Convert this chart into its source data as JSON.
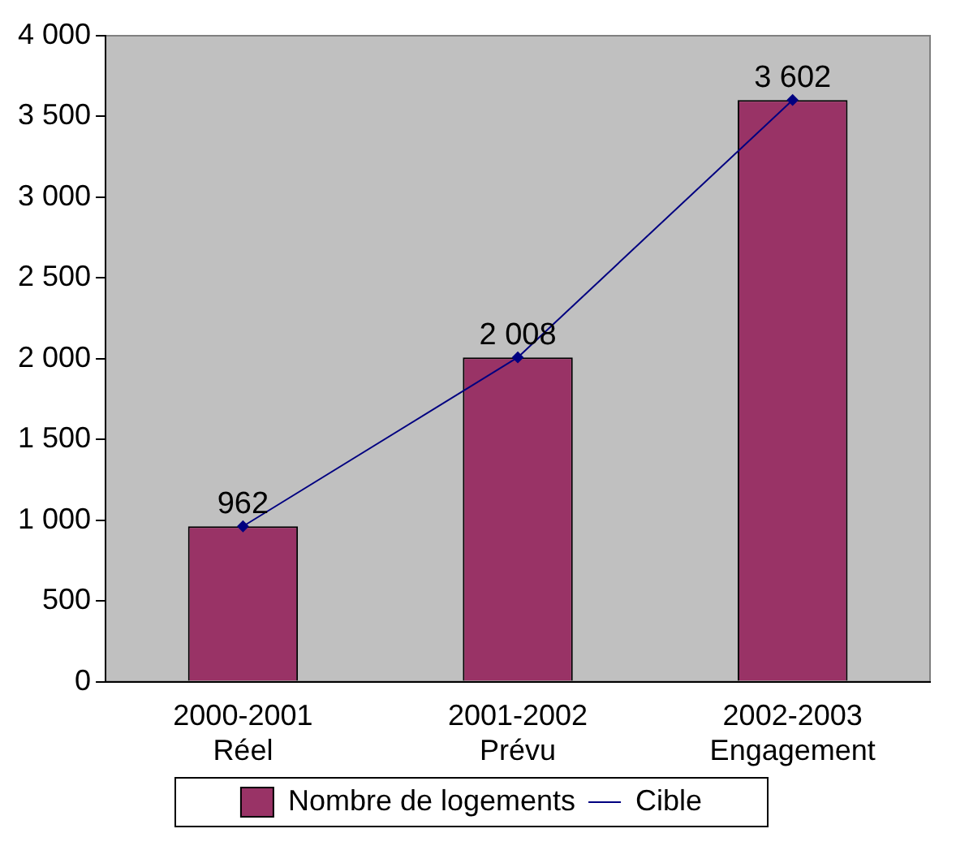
{
  "chart_data": {
    "type": "bar",
    "categories": [
      "2000-2001\nRéel",
      "2001-2002\nPrévu",
      "2002-2003\nEngagement"
    ],
    "series": [
      {
        "name": "Nombre de logements",
        "color": "#993366",
        "values": [
          962,
          2008,
          3602
        ],
        "value_labels": [
          "962",
          "2 008",
          "3 602"
        ]
      },
      {
        "name": "Cible",
        "type": "line",
        "color": "#000080",
        "values": [
          962,
          2008,
          3602
        ],
        "marker": "diamond",
        "line_style": "solid"
      }
    ],
    "ylim": [
      0,
      4000
    ],
    "yticks": [
      {
        "value": 0,
        "label": "0"
      },
      {
        "value": 500,
        "label": "500"
      },
      {
        "value": 1000,
        "label": "1 000"
      },
      {
        "value": 1500,
        "label": "1 500"
      },
      {
        "value": 2000,
        "label": "2 000"
      },
      {
        "value": 2500,
        "label": "2 500"
      },
      {
        "value": 3000,
        "label": "3 000"
      },
      {
        "value": 3500,
        "label": "3 500"
      },
      {
        "value": 4000,
        "label": "4 000"
      }
    ],
    "grid": false,
    "legend": "bottom"
  }
}
